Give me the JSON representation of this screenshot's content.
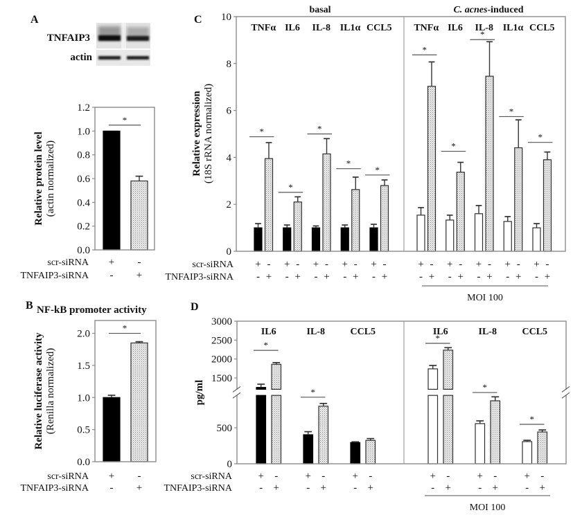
{
  "colors": {
    "solid-black": "#000000",
    "open-white": "#ffffff",
    "dotted-gray": "#d4d4d4"
  },
  "chart_data": [
    {
      "panel": "A",
      "type": "bar",
      "title": "",
      "blot": {
        "rows": [
          "TNFAIP3",
          "actin"
        ]
      },
      "ylabel": "Relative protein level",
      "ylabel_sub": "(actin normalized)",
      "ylim": [
        0,
        1.2
      ],
      "yticks": [
        0,
        0.2,
        0.4,
        0.6,
        0.8,
        1.0,
        1.2
      ],
      "ytick_labels": [
        "0.0",
        "0.2",
        "0.4",
        "0.6",
        "0.8",
        "1.0",
        "1.2"
      ],
      "grid": false,
      "bars": [
        {
          "label": "scr-siRNA",
          "value": 1.0,
          "error": 0.0,
          "style": "solid-black"
        },
        {
          "label": "TNFAIP3-siRNA",
          "value": 0.58,
          "error": 0.04,
          "style": "dotted-gray"
        }
      ],
      "condition_rows": [
        {
          "label": "scr-siRNA",
          "signs": [
            "+",
            "-"
          ]
        },
        {
          "label": "TNFAIP3-siRNA",
          "signs": [
            "-",
            "+"
          ]
        }
      ],
      "significance": [
        {
          "between": [
            0,
            1
          ],
          "level": 1.05,
          "label": "*"
        }
      ]
    },
    {
      "panel": "B",
      "type": "bar",
      "title": "NF-kB promoter activity",
      "ylabel": "Relative luciferase activity",
      "ylabel_sub": "(Renilla normalized)",
      "ylim": [
        0,
        2.2
      ],
      "yticks": [
        0,
        0.5,
        1.0,
        1.5,
        2.0
      ],
      "ytick_labels": [
        "0.0",
        "0.5",
        "1.0",
        "1.5",
        "2.0"
      ],
      "grid": false,
      "bars": [
        {
          "label": "scr-siRNA",
          "value": 1.0,
          "error": 0.035,
          "style": "solid-black"
        },
        {
          "label": "TNFAIP3-siRNA",
          "value": 1.85,
          "error": 0.02,
          "style": "dotted-gray"
        }
      ],
      "condition_rows": [
        {
          "label": "scr-siRNA",
          "signs": [
            "+",
            "-"
          ]
        },
        {
          "label": "TNFAIP3-siRNA",
          "signs": [
            "-",
            "+"
          ]
        }
      ],
      "significance": [
        {
          "between": [
            0,
            1
          ],
          "level": 2.0,
          "label": "*"
        }
      ]
    },
    {
      "panel": "C",
      "type": "bar",
      "ylabel": "Relative expression",
      "ylabel_sub": "(18S rRNA normalized)",
      "ylim": [
        0,
        10
      ],
      "yticks": [
        0,
        2,
        4,
        6,
        8,
        10
      ],
      "ytick_labels": [
        "0",
        "2",
        "4",
        "6",
        "8",
        "10"
      ],
      "grid": false,
      "condition_rows": [
        {
          "label": "scr-siRNA",
          "signs": [
            "+",
            "-"
          ]
        },
        {
          "label": "TNFAIP3-siRNA",
          "signs": [
            "-",
            "+"
          ]
        }
      ],
      "groups": [
        {
          "title": "basal",
          "title_italic": "",
          "title_rest": "",
          "categories": [
            "TNFα",
            "IL6",
            "IL-8",
            "IL1α",
            "CCL5"
          ],
          "series": [
            {
              "name": "scr-siRNA",
              "style": "solid-black",
              "values": [
                1.0,
                1.0,
                1.0,
                1.0,
                1.0
              ],
              "errors": [
                0.18,
                0.12,
                0.08,
                0.12,
                0.15
              ]
            },
            {
              "name": "TNFAIP3-siRNA",
              "style": "dotted-gray",
              "values": [
                3.95,
                2.1,
                4.15,
                2.63,
                2.8
              ],
              "errors": [
                0.68,
                0.22,
                0.65,
                0.53,
                0.24
              ]
            }
          ],
          "significance": [
            {
              "category": 0,
              "level": 4.88,
              "label": "*"
            },
            {
              "category": 1,
              "level": 2.51,
              "label": "*"
            },
            {
              "category": 2,
              "level": 5.0,
              "label": "*"
            },
            {
              "category": 3,
              "level": 3.52,
              "label": "*"
            },
            {
              "category": 4,
              "level": 3.25,
              "label": "*"
            }
          ],
          "footer": ""
        },
        {
          "title": "",
          "title_italic": "C. acnes",
          "title_rest": "-induced",
          "categories": [
            "TNFα",
            "IL6",
            "IL-8",
            "IL1α",
            "CCL5"
          ],
          "series": [
            {
              "name": "scr-siRNA",
              "style": "open-white",
              "values": [
                1.54,
                1.33,
                1.6,
                1.27,
                1.0
              ],
              "errors": [
                0.32,
                0.21,
                0.35,
                0.21,
                0.18
              ]
            },
            {
              "name": "TNFAIP3-siRNA",
              "style": "dotted-gray",
              "values": [
                7.03,
                3.37,
                7.46,
                4.41,
                3.9
              ],
              "errors": [
                1.04,
                0.42,
                1.47,
                1.19,
                0.33
              ]
            }
          ],
          "significance": [
            {
              "category": 0,
              "level": 8.37,
              "label": "*"
            },
            {
              "category": 1,
              "level": 4.26,
              "label": "*"
            },
            {
              "category": 2,
              "level": 9.02,
              "label": "*"
            },
            {
              "category": 3,
              "level": 5.74,
              "label": "*"
            },
            {
              "category": 4,
              "level": 4.64,
              "label": "*"
            }
          ],
          "footer": "MOI 100"
        }
      ]
    },
    {
      "panel": "D",
      "type": "bar",
      "ylabel": "pg/ml",
      "ylabel_sub": "",
      "ylim": [
        0,
        3000
      ],
      "axis_break": [
        950,
        1200
      ],
      "yticks": [
        0,
        500,
        1500,
        2000,
        2500,
        3000
      ],
      "ytick_labels": [
        "0",
        "500",
        "1500",
        "2000",
        "2500",
        "3000"
      ],
      "grid": false,
      "condition_rows": [
        {
          "label": "scr-siRNA",
          "signs": [
            "+",
            "-"
          ]
        },
        {
          "label": "TNFAIP3-siRNA",
          "signs": [
            "-",
            "+"
          ]
        }
      ],
      "groups": [
        {
          "title": "",
          "title_italic": "",
          "title_rest": "",
          "categories": [
            "IL6",
            "IL-8",
            "CCL5"
          ],
          "series": [
            {
              "name": "scr-siRNA",
              "style": "solid-black",
              "values": [
                1250,
                404,
                295
              ],
              "errors": [
                85,
                42,
                10
              ]
            },
            {
              "name": "TNFAIP3-siRNA",
              "style": "dotted-gray",
              "values": [
                1860,
                800,
                325
              ],
              "errors": [
                45,
                38,
                25
              ]
            }
          ],
          "significance": [
            {
              "category": 0,
              "level": 2230,
              "label": "*"
            },
            {
              "category": 1,
              "level": 925,
              "label": "*"
            }
          ],
          "footer": ""
        },
        {
          "title": "",
          "title_italic": "",
          "title_rest": "",
          "categories": [
            "IL6",
            "IL-8",
            "CCL5"
          ],
          "series": [
            {
              "name": "scr-siRNA",
              "style": "open-white",
              "values": [
                1740,
                558,
                308
              ],
              "errors": [
                90,
                38,
                18
              ]
            },
            {
              "name": "TNFAIP3-siRNA",
              "style": "dotted-gray",
              "values": [
                2235,
                875,
                442
              ],
              "errors": [
                65,
                55,
                28
              ]
            }
          ],
          "significance": [
            {
              "category": 0,
              "level": 2415,
              "label": "*"
            },
            {
              "category": 1,
              "level": 990,
              "label": "*"
            },
            {
              "category": 2,
              "level": 548,
              "label": "*"
            }
          ],
          "footer": "MOI 100"
        }
      ]
    }
  ]
}
